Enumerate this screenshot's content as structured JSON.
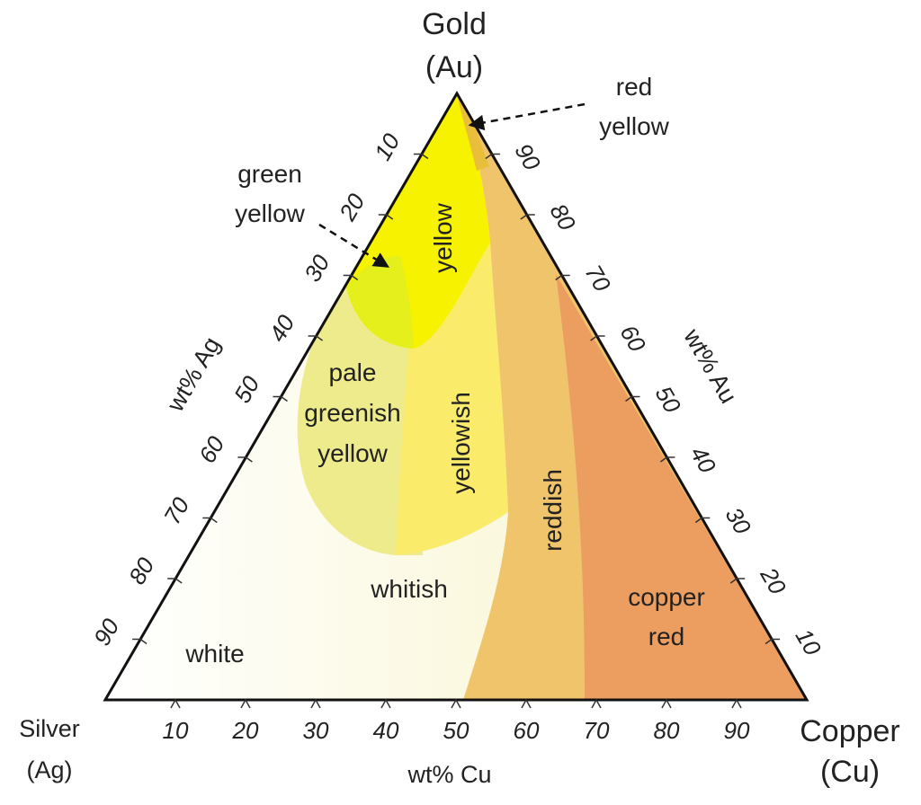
{
  "vertices": {
    "gold": {
      "name": "Gold",
      "symbol": "(Au)"
    },
    "silver": {
      "name": "Silver",
      "symbol": "(Ag)"
    },
    "copper": {
      "name": "Copper",
      "symbol": "(Cu)"
    }
  },
  "axes": {
    "cu": {
      "title": "wt% Cu",
      "ticks": [
        "10",
        "20",
        "30",
        "40",
        "50",
        "60",
        "70",
        "80",
        "90"
      ]
    },
    "ag": {
      "title": "wt% Ag",
      "ticks": [
        "10",
        "20",
        "30",
        "40",
        "50",
        "60",
        "70",
        "80",
        "90"
      ]
    },
    "au": {
      "title": "wt% Au",
      "ticks": [
        "90",
        "80",
        "70",
        "60",
        "50",
        "40",
        "30",
        "20",
        "10"
      ]
    }
  },
  "regions": {
    "white": {
      "label": "white",
      "color": "#fdfcef"
    },
    "whitish": {
      "label": "whitish",
      "color": "#f8f4c6"
    },
    "pale_greenish_yellow": {
      "lines": [
        "pale",
        "greenish",
        "yellow"
      ],
      "color": "#eeeb8c"
    },
    "yellowish": {
      "label": "yellowish",
      "color": "#faec6a"
    },
    "yellow": {
      "label": "yellow",
      "color": "#f7f200"
    },
    "green_yellow": {
      "color": "#e4ef1c"
    },
    "reddish": {
      "label": "reddish",
      "color": "#f0c46a"
    },
    "copper_red": {
      "lines": [
        "copper",
        "red"
      ],
      "color": "#eb9e60"
    },
    "red_yellow": {
      "color": "#e9be3a"
    }
  },
  "callouts": {
    "green_yellow": {
      "lines": [
        "green",
        "yellow"
      ]
    },
    "red_yellow": {
      "lines": [
        "red",
        "yellow"
      ]
    }
  }
}
